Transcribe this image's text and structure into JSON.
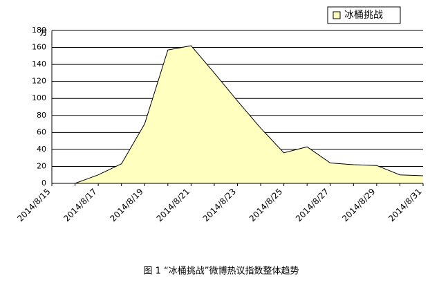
{
  "chart_data": {
    "type": "area",
    "caption": "图 1 “冰桶挑战”微博热议指数整体趋势",
    "y_unit": "万",
    "categories": [
      "2014/8/15",
      null,
      "2014/8/17",
      null,
      "2014/8/19",
      null,
      "2014/8/21",
      null,
      "2014/8/23",
      null,
      "2014/8/25",
      null,
      "2014/8/27",
      null,
      "2014/8/29",
      null,
      "2014/8/31"
    ],
    "series": [
      {
        "name": "冰桶挑战",
        "color": "#ffffc0",
        "values": [
          null,
          0,
          10,
          23,
          70,
          157,
          162,
          130,
          97,
          65,
          36,
          43,
          24,
          22,
          21,
          10,
          9
        ]
      }
    ],
    "ylim": [
      0,
      180
    ],
    "yticks": [
      0,
      20,
      40,
      60,
      80,
      100,
      120,
      140,
      160,
      180
    ],
    "grid": true,
    "legend": "top-right"
  }
}
